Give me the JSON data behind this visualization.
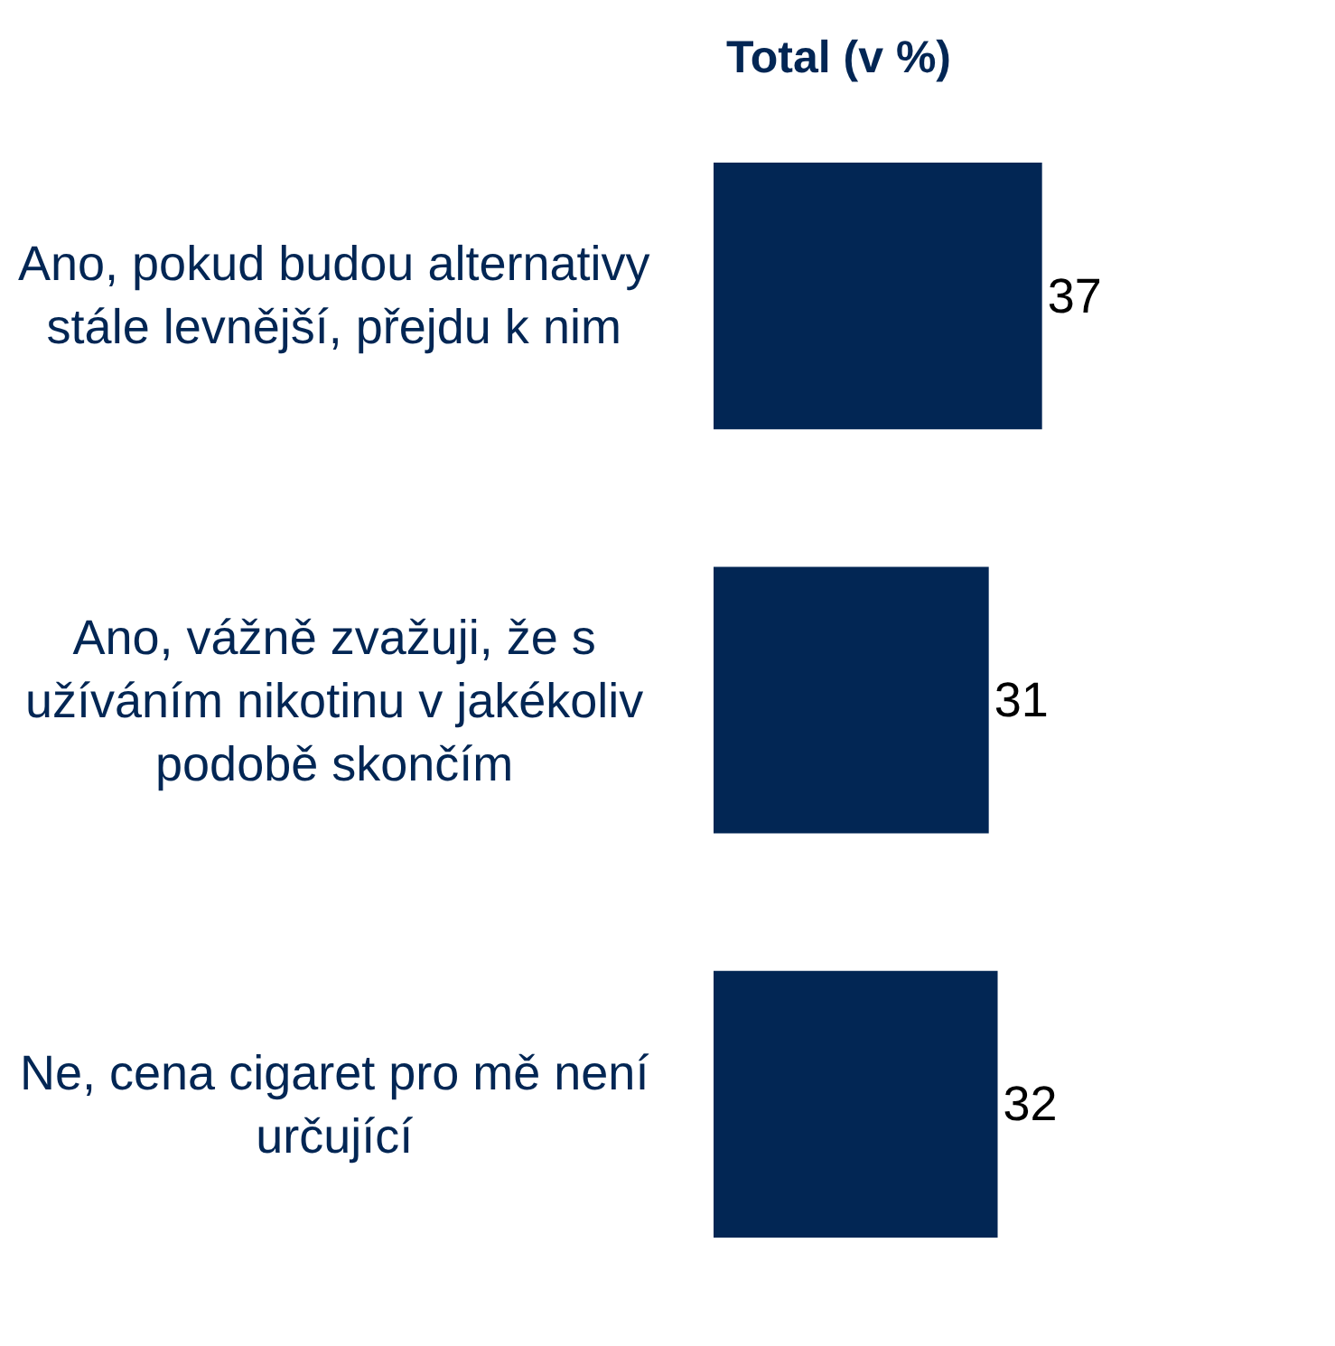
{
  "chart_data": {
    "type": "bar",
    "orientation": "horizontal",
    "title": "Total (v %)",
    "categories": [
      "Ano, pokud budou alternativy stále levnější, přejdu k nim",
      "Ano, vážně zvažuji, že s užíváním nikotinu v jakékoliv podobě skončím",
      "Ne, cena cigaret pro mě není určující"
    ],
    "values": [
      37,
      31,
      32
    ],
    "color": "#022654",
    "data_labels": true,
    "xlim": [
      0,
      70
    ],
    "tick_labels": false
  }
}
